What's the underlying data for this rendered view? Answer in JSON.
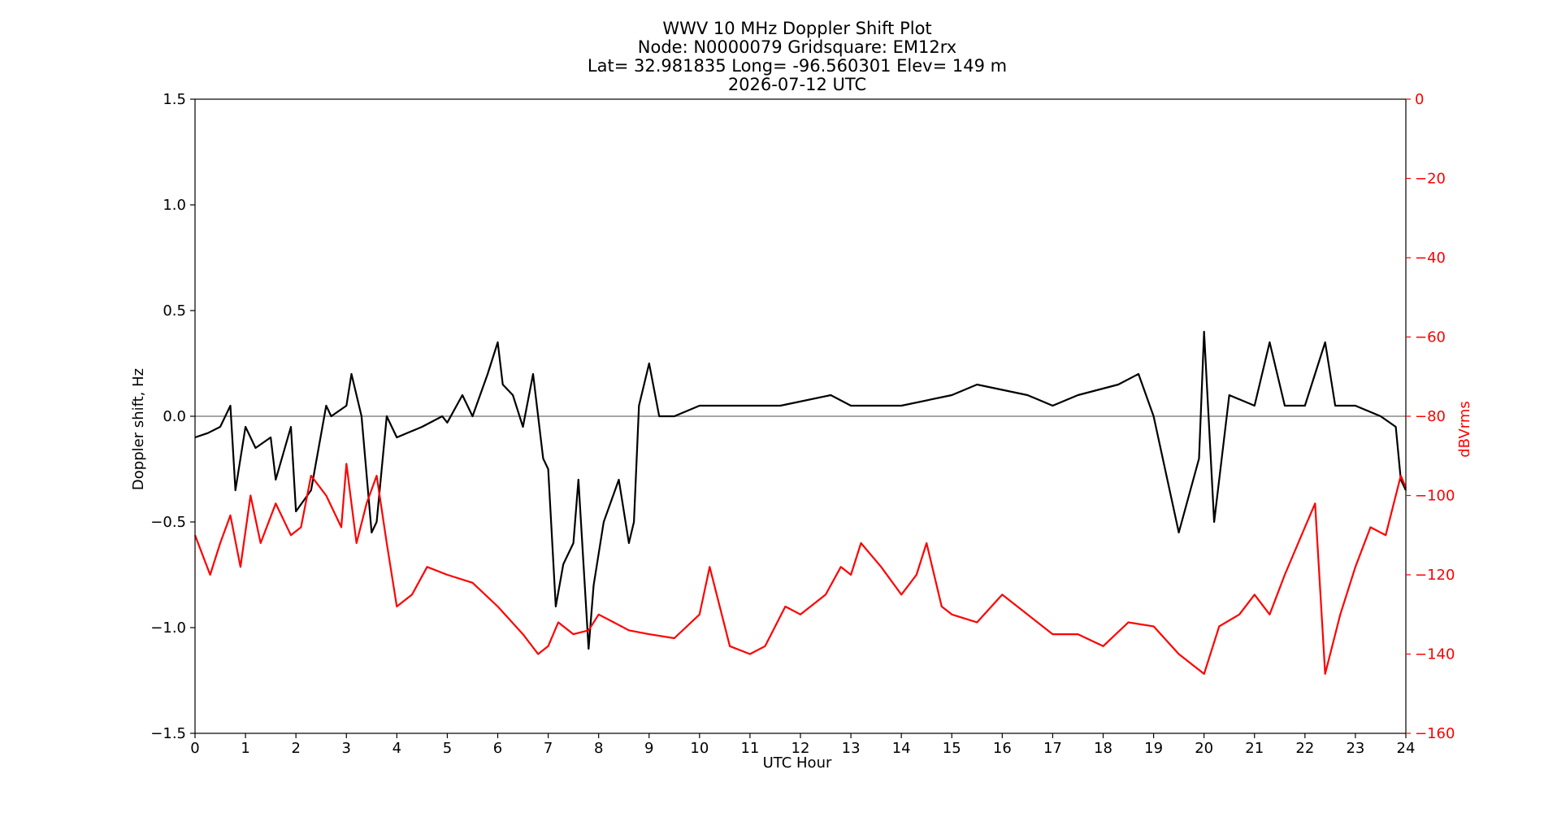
{
  "chart_data": {
    "type": "line",
    "title_lines": [
      "WWV 10 MHz Doppler Shift Plot",
      "Node:  N0000079     Gridsquare:  EM12rx",
      "Lat= 32.981835    Long= -96.560301    Elev= 149 m",
      "2026-07-12  UTC"
    ],
    "xlabel": "UTC Hour",
    "ylabel_left": "Doppler shift, Hz",
    "ylabel_right": "dBVrms",
    "xlim": [
      0,
      24
    ],
    "ylim_left": [
      -1.5,
      1.5
    ],
    "ylim_right": [
      -160,
      0
    ],
    "x_ticks": [
      "0",
      "1",
      "2",
      "3",
      "4",
      "5",
      "6",
      "7",
      "8",
      "9",
      "10",
      "11",
      "12",
      "13",
      "14",
      "15",
      "16",
      "17",
      "18",
      "19",
      "20",
      "21",
      "22",
      "23",
      "24"
    ],
    "y_ticks_left": [
      "1.5",
      "1.0",
      "0.5",
      "0.0",
      "−0.5",
      "−1.0",
      "−1.5"
    ],
    "y_ticks_right": [
      "0",
      "−20",
      "−40",
      "−60",
      "−80",
      "−100",
      "−120",
      "−140",
      "−160"
    ],
    "grid": false,
    "reference_line": 0.0,
    "colors": {
      "doppler": "#000000",
      "power": "#ff0000",
      "right_axis": "#ff0000",
      "reference": "#888888"
    },
    "series": [
      {
        "axis": "left",
        "color": "#000000",
        "x": [
          0,
          0.25,
          0.5,
          0.7,
          0.8,
          1.0,
          1.2,
          1.5,
          1.6,
          1.9,
          2.0,
          2.3,
          2.6,
          2.7,
          3.0,
          3.1,
          3.3,
          3.5,
          3.6,
          3.8,
          4.0,
          4.5,
          4.9,
          5.0,
          5.3,
          5.5,
          5.8,
          6.0,
          6.1,
          6.3,
          6.5,
          6.7,
          6.9,
          7.0,
          7.15,
          7.3,
          7.5,
          7.6,
          7.8,
          7.9,
          8.1,
          8.4,
          8.6,
          8.7,
          8.8,
          9.0,
          9.2,
          9.5,
          10.0,
          11.0,
          11.6,
          12.6,
          13.0,
          14.0,
          15.0,
          15.5,
          16.5,
          17.0,
          17.5,
          18.3,
          18.7,
          19.0,
          19.5,
          19.9,
          20.0,
          20.2,
          20.5,
          21.0,
          21.3,
          21.6,
          22.0,
          22.4,
          22.6,
          23.0,
          23.5,
          23.8,
          23.9,
          24.0
        ],
        "y": [
          -0.1,
          -0.08,
          -0.05,
          0.05,
          -0.35,
          -0.05,
          -0.15,
          -0.1,
          -0.3,
          -0.05,
          -0.45,
          -0.35,
          0.05,
          0.0,
          0.05,
          0.2,
          0.0,
          -0.55,
          -0.5,
          0.0,
          -0.1,
          -0.05,
          0.0,
          -0.03,
          0.1,
          0.0,
          0.2,
          0.35,
          0.15,
          0.1,
          -0.05,
          0.2,
          -0.2,
          -0.25,
          -0.9,
          -0.7,
          -0.6,
          -0.3,
          -1.1,
          -0.8,
          -0.5,
          -0.3,
          -0.6,
          -0.5,
          0.05,
          0.25,
          0.0,
          0.0,
          0.05,
          0.05,
          0.05,
          0.1,
          0.05,
          0.05,
          0.1,
          0.15,
          0.1,
          0.05,
          0.1,
          0.15,
          0.2,
          0.0,
          -0.55,
          -0.2,
          0.4,
          -0.5,
          0.1,
          0.05,
          0.35,
          0.05,
          0.05,
          0.35,
          0.05,
          0.05,
          0.0,
          -0.05,
          -0.3,
          -0.35
        ]
      },
      {
        "axis": "right",
        "color": "#ff0000",
        "x": [
          0,
          0.3,
          0.5,
          0.7,
          0.9,
          1.1,
          1.3,
          1.6,
          1.9,
          2.1,
          2.3,
          2.6,
          2.9,
          3.0,
          3.2,
          3.4,
          3.6,
          3.8,
          4.0,
          4.3,
          4.6,
          5.0,
          5.5,
          6.0,
          6.5,
          6.8,
          7.0,
          7.2,
          7.5,
          7.8,
          8.0,
          8.3,
          8.6,
          9.0,
          9.5,
          10.0,
          10.2,
          10.6,
          11.0,
          11.3,
          11.7,
          12.0,
          12.5,
          12.8,
          13.0,
          13.2,
          13.6,
          14.0,
          14.3,
          14.5,
          14.8,
          15.0,
          15.5,
          16.0,
          16.5,
          17.0,
          17.5,
          18.0,
          18.5,
          19.0,
          19.5,
          20.0,
          20.3,
          20.7,
          21.0,
          21.3,
          21.6,
          22.0,
          22.2,
          22.4,
          22.7,
          23.0,
          23.3,
          23.6,
          23.9,
          24.0
        ],
        "y": [
          -110,
          -120,
          -112,
          -105,
          -118,
          -100,
          -112,
          -102,
          -110,
          -108,
          -95,
          -100,
          -108,
          -92,
          -112,
          -102,
          -95,
          -112,
          -128,
          -125,
          -118,
          -120,
          -122,
          -128,
          -135,
          -140,
          -138,
          -132,
          -135,
          -134,
          -130,
          -132,
          -134,
          -135,
          -136,
          -130,
          -118,
          -138,
          -140,
          -138,
          -128,
          -130,
          -125,
          -118,
          -120,
          -112,
          -118,
          -125,
          -120,
          -112,
          -128,
          -130,
          -132,
          -125,
          -130,
          -135,
          -135,
          -138,
          -132,
          -133,
          -140,
          -145,
          -133,
          -130,
          -125,
          -130,
          -120,
          -108,
          -102,
          -145,
          -130,
          -118,
          -108,
          -110,
          -95,
          -98
        ]
      }
    ]
  }
}
